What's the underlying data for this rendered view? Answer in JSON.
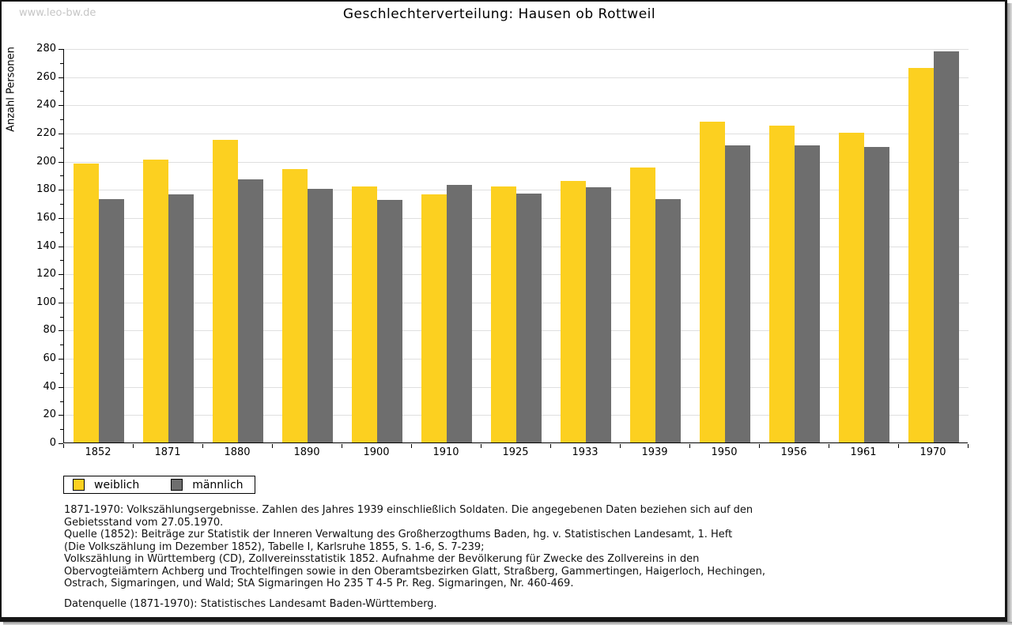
{
  "watermark": "www.leo-bw.de",
  "title": "Geschlechterverteilung: Hausen ob Rottweil",
  "chart_data": {
    "type": "bar",
    "title": "Geschlechterverteilung: Hausen ob Rottweil",
    "xlabel": "",
    "ylabel": "Anzahl Personen",
    "ylim": [
      0,
      280
    ],
    "ytick_step": 20,
    "ytick_minor_step": 10,
    "grid": true,
    "legend_position": "bottom-left",
    "categories": [
      "1852",
      "1871",
      "1880",
      "1890",
      "1900",
      "1910",
      "1925",
      "1933",
      "1939",
      "1950",
      "1956",
      "1961",
      "1970"
    ],
    "series": [
      {
        "name": "weiblich",
        "color": "#FCD020",
        "values": [
          198,
          201,
          215,
          194,
          182,
          176,
          182,
          186,
          195,
          228,
          225,
          220,
          266
        ]
      },
      {
        "name": "männlich",
        "color": "#6E6E6E",
        "values": [
          173,
          176,
          187,
          180,
          172,
          183,
          177,
          181,
          173,
          211,
          211,
          210,
          278
        ]
      }
    ]
  },
  "legend": {
    "items": [
      {
        "label": "weiblich",
        "color": "#FCD020"
      },
      {
        "label": "männlich",
        "color": "#6E6E6E"
      }
    ]
  },
  "footnotes": {
    "lines": [
      "1871-1970: Volkszählungsergebnisse. Zahlen des Jahres 1939 einschließlich Soldaten. Die angegebenen Daten beziehen sich auf den",
      "Gebietsstand vom 27.05.1970.",
      "Quelle (1852): Beiträge zur Statistik der Inneren Verwaltung des Großherzogthums Baden, hg. v. Statistischen Landesamt, 1. Heft",
      "(Die Volkszählung im Dezember 1852), Tabelle I, Karlsruhe 1855, S. 1-6, S. 7-239;",
      "Volkszählung in Württemberg (CD), Zollvereinsstatistik 1852. Aufnahme der Bevölkerung für Zwecke des Zollvereins in den",
      "Obervogteiämtern Achberg und Trochtelfingen sowie in den Oberamtsbezirken Glatt, Straßberg, Gammertingen, Haigerloch, Hechingen,",
      "Ostrach, Sigmaringen, und Wald; StA Sigmaringen Ho 235 T 4-5 Pr. Reg. Sigmaringen, Nr. 460-469."
    ],
    "datasource": "Datenquelle (1871-1970): Statistisches Landesamt Baden-Württemberg."
  },
  "colors": {
    "weiblich": "#FCD020",
    "maennlich": "#6E6E6E",
    "gridline": "#dfdfdf",
    "axis": "#000000",
    "watermark": "#c6c6c6",
    "frame_border": "#161616"
  }
}
